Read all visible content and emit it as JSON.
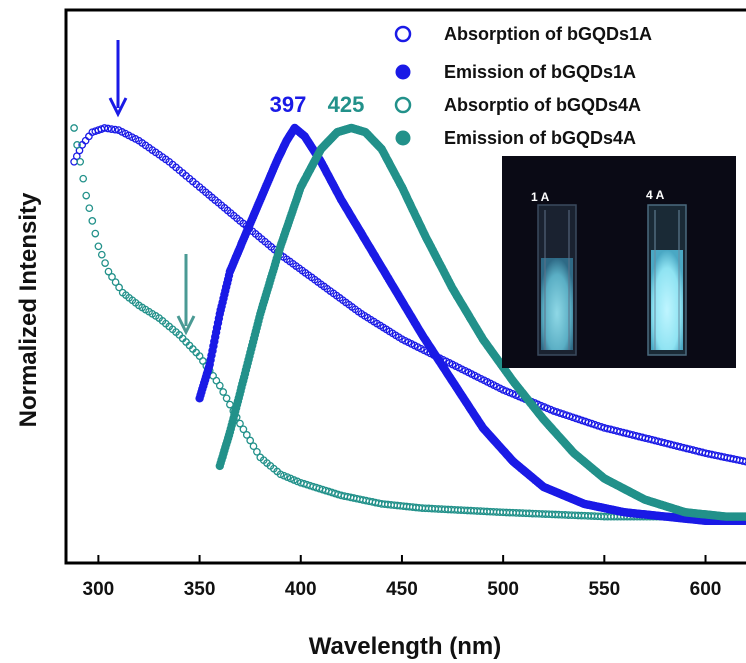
{
  "chart_data": {
    "type": "scatter",
    "xlabel": "Wavelength (nm)",
    "ylabel": "Normalized Intensity",
    "xlim": [
      284,
      620
    ],
    "ylim": [
      0,
      1
    ],
    "x_ticks": [
      300,
      350,
      400,
      450,
      500,
      550,
      600
    ],
    "y_ticks_shown": false,
    "legend_position": "top-right",
    "series": [
      {
        "name": "Absorption of bGQDs1A",
        "marker": "open-circle",
        "color": "#1a1ae6",
        "points": [
          [
            288,
            0.86
          ],
          [
            292,
            0.9
          ],
          [
            297,
            0.93
          ],
          [
            303,
            0.94
          ],
          [
            310,
            0.935
          ],
          [
            320,
            0.91
          ],
          [
            335,
            0.86
          ],
          [
            350,
            0.8
          ],
          [
            370,
            0.72
          ],
          [
            390,
            0.64
          ],
          [
            410,
            0.57
          ],
          [
            430,
            0.5
          ],
          [
            450,
            0.44
          ],
          [
            475,
            0.38
          ],
          [
            500,
            0.32
          ],
          [
            525,
            0.27
          ],
          [
            550,
            0.23
          ],
          [
            575,
            0.2
          ],
          [
            600,
            0.17
          ],
          [
            620,
            0.15
          ]
        ]
      },
      {
        "name": "Emission of bGQDs1A",
        "marker": "filled-circle",
        "color": "#1a1ae6",
        "points": [
          [
            350,
            0.3
          ],
          [
            355,
            0.38
          ],
          [
            360,
            0.5
          ],
          [
            365,
            0.6
          ],
          [
            372,
            0.68
          ],
          [
            380,
            0.77
          ],
          [
            388,
            0.86
          ],
          [
            393,
            0.91
          ],
          [
            397,
            0.94
          ],
          [
            402,
            0.92
          ],
          [
            410,
            0.86
          ],
          [
            420,
            0.77
          ],
          [
            430,
            0.69
          ],
          [
            445,
            0.57
          ],
          [
            460,
            0.45
          ],
          [
            475,
            0.34
          ],
          [
            490,
            0.23
          ],
          [
            505,
            0.15
          ],
          [
            520,
            0.09
          ],
          [
            540,
            0.05
          ],
          [
            560,
            0.03
          ],
          [
            580,
            0.02
          ],
          [
            600,
            0.01
          ],
          [
            620,
            0.01
          ]
        ]
      },
      {
        "name": "Absorptio of bGQDs4A",
        "marker": "open-circle",
        "color": "#22918a",
        "points": [
          [
            288,
            0.94
          ],
          [
            291,
            0.86
          ],
          [
            294,
            0.78
          ],
          [
            297,
            0.72
          ],
          [
            300,
            0.66
          ],
          [
            305,
            0.6
          ],
          [
            312,
            0.55
          ],
          [
            320,
            0.52
          ],
          [
            330,
            0.49
          ],
          [
            340,
            0.45
          ],
          [
            350,
            0.4
          ],
          [
            360,
            0.33
          ],
          [
            370,
            0.24
          ],
          [
            380,
            0.16
          ],
          [
            390,
            0.12
          ],
          [
            400,
            0.1
          ],
          [
            420,
            0.07
          ],
          [
            440,
            0.05
          ],
          [
            460,
            0.04
          ],
          [
            500,
            0.03
          ],
          [
            550,
            0.02
          ],
          [
            600,
            0.02
          ],
          [
            620,
            0.02
          ]
        ]
      },
      {
        "name": "Emission of bGQDs4A",
        "marker": "filled-circle",
        "color": "#22918a",
        "points": [
          [
            360,
            0.14
          ],
          [
            365,
            0.22
          ],
          [
            372,
            0.35
          ],
          [
            380,
            0.5
          ],
          [
            390,
            0.66
          ],
          [
            400,
            0.8
          ],
          [
            410,
            0.89
          ],
          [
            418,
            0.93
          ],
          [
            425,
            0.94
          ],
          [
            432,
            0.93
          ],
          [
            440,
            0.89
          ],
          [
            450,
            0.8
          ],
          [
            462,
            0.68
          ],
          [
            475,
            0.56
          ],
          [
            490,
            0.44
          ],
          [
            505,
            0.34
          ],
          [
            520,
            0.25
          ],
          [
            535,
            0.17
          ],
          [
            550,
            0.11
          ],
          [
            570,
            0.06
          ],
          [
            590,
            0.03
          ],
          [
            610,
            0.02
          ],
          [
            620,
            0.02
          ]
        ]
      }
    ],
    "annotations": {
      "peak_1A": "397",
      "peak_4A": "425"
    },
    "inset": {
      "label_left": "1 A",
      "label_right": "4 A"
    }
  }
}
